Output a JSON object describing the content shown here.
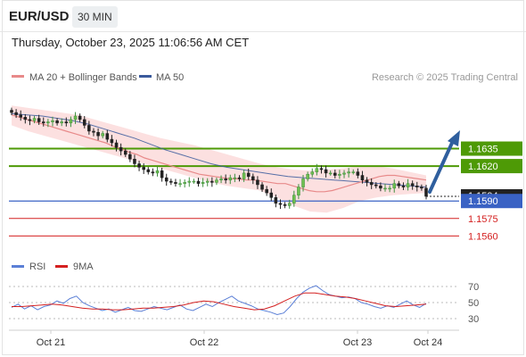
{
  "header": {
    "symbol": "EUR/USD",
    "timeframe": "30 MIN",
    "timestamp": "Thursday, October 23, 2025 11:06:56 AM CET",
    "credit": "Research © 2025 Trading Central"
  },
  "legend": {
    "ma20_label": "MA 20 + Bollinger Bands",
    "ma50_label": "MA 50",
    "rsi_label": "RSI",
    "rsi_ma_label": "9MA"
  },
  "colors": {
    "green": "#4e9a06",
    "blue": "#3a62c4",
    "red": "#d42020",
    "ma20": "#e88a8a",
    "ma50": "#3a5a9c",
    "band": "#fbd5d5",
    "arrow": "#2f5f9e",
    "rsi": "#5b7fd6",
    "rsi_ma": "#d42020"
  },
  "chart_data": [
    {
      "type": "candlestick",
      "title": "EUR/USD",
      "x_ticks": [
        "Oct 21",
        "Oct 22",
        "Oct 23",
        "Oct 24"
      ],
      "ylim": [
        1.1548,
        1.1686
      ],
      "levels": [
        {
          "label": "1.1635",
          "value": 1.1635,
          "kind": "resistance",
          "color": "#4e9a06"
        },
        {
          "label": "1.1620",
          "value": 1.162,
          "kind": "resistance",
          "color": "#4e9a06"
        },
        {
          "label": "1.1594",
          "value": 1.1594,
          "kind": "last-price",
          "color": "#222222"
        },
        {
          "label": "1.1590",
          "value": 1.159,
          "kind": "pivot",
          "color": "#3a62c4"
        },
        {
          "label": "1.1575",
          "value": 1.1575,
          "kind": "support",
          "color": "#d42020"
        },
        {
          "label": "1.1560",
          "value": 1.156,
          "kind": "support",
          "color": "#d42020"
        }
      ],
      "close": [
        1.1666,
        1.1664,
        1.1662,
        1.166,
        1.1659,
        1.1661,
        1.1658,
        1.1657,
        1.1658,
        1.1659,
        1.1657,
        1.1658,
        1.1657,
        1.166,
        1.1663,
        1.166,
        1.1655,
        1.165,
        1.1649,
        1.1646,
        1.1648,
        1.1643,
        1.164,
        1.1636,
        1.1633,
        1.163,
        1.1626,
        1.1622,
        1.1619,
        1.1617,
        1.1615,
        1.1614,
        1.1616,
        1.161,
        1.1607,
        1.1606,
        1.1605,
        1.1605,
        1.1606,
        1.1607,
        1.1607,
        1.1605,
        1.1606,
        1.1607,
        1.1606,
        1.1608,
        1.1609,
        1.1608,
        1.161,
        1.161,
        1.1609,
        1.1614,
        1.1611,
        1.1608,
        1.1604,
        1.16,
        1.1597,
        1.1593,
        1.1588,
        1.1587,
        1.1586,
        1.1588,
        1.1595,
        1.1602,
        1.1609,
        1.1613,
        1.1615,
        1.1618,
        1.1617,
        1.1614,
        1.1614,
        1.1612,
        1.1613,
        1.1614,
        1.1615,
        1.1615,
        1.1612,
        1.1608,
        1.1606,
        1.1604,
        1.1603,
        1.1601,
        1.1601,
        1.1601,
        1.1605,
        1.1603,
        1.1602,
        1.1605,
        1.1603,
        1.1602,
        1.1601,
        1.1594
      ],
      "ma20": [
        1.1664,
        1.1662,
        1.166,
        1.1658,
        1.1656,
        1.1654,
        1.1652,
        1.165,
        1.1648,
        1.1646,
        1.1644,
        1.1642,
        1.164,
        1.1637,
        1.1635,
        1.1632,
        1.163,
        1.1627,
        1.1625,
        1.1623,
        1.1621,
        1.1619,
        1.1617,
        1.1615,
        1.1613,
        1.1612,
        1.1611,
        1.161,
        1.1609,
        1.1609,
        1.1608,
        1.1608,
        1.1607,
        1.1606,
        1.1605,
        1.1605,
        1.1603,
        1.1601,
        1.1599,
        1.1598,
        1.1598,
        1.1599,
        1.1601,
        1.1603,
        1.1605,
        1.1607,
        1.1609,
        1.1611,
        1.1612,
        1.1612,
        1.1611,
        1.161,
        1.1609,
        1.1608
      ],
      "ma50": [
        1.1665,
        1.1664,
        1.1663,
        1.1661,
        1.1659,
        1.1656,
        1.1652,
        1.1648,
        1.1644,
        1.1639,
        1.1634,
        1.163,
        1.1626,
        1.1622,
        1.1619,
        1.1617,
        1.1615,
        1.1613,
        1.1611,
        1.161,
        1.1609,
        1.1608,
        1.1607,
        1.1606,
        1.1605,
        1.1604,
        1.1603,
        1.1602
      ],
      "bb_upper": [
        1.1672,
        1.167,
        1.1668,
        1.1666,
        1.1664,
        1.166,
        1.1656,
        1.1652,
        1.1648,
        1.1644,
        1.1641,
        1.1638,
        1.1634,
        1.163,
        1.1626,
        1.1622,
        1.1619,
        1.1617,
        1.1616,
        1.1617,
        1.1618,
        1.162,
        1.162,
        1.1618,
        1.1615,
        1.1612
      ],
      "bb_lower": [
        1.1655,
        1.165,
        1.1646,
        1.1642,
        1.1638,
        1.1634,
        1.163,
        1.1626,
        1.1622,
        1.1618,
        1.1614,
        1.161,
        1.1606,
        1.1603,
        1.1601,
        1.1599,
        1.1593,
        1.1586,
        1.1581,
        1.158,
        1.1584,
        1.159,
        1.1593,
        1.1595,
        1.1596,
        1.1597
      ]
    },
    {
      "type": "line",
      "title": "RSI",
      "y_ticks": [
        70,
        50,
        30
      ],
      "ylim": [
        20,
        80
      ],
      "series": [
        {
          "name": "RSI",
          "values": [
            44,
            48,
            42,
            46,
            41,
            45,
            47,
            52,
            49,
            55,
            58,
            50,
            46,
            43,
            40,
            42,
            38,
            41,
            44,
            40,
            39,
            42,
            45,
            43,
            41,
            44,
            47,
            42,
            40,
            44,
            48,
            45,
            50,
            54,
            58,
            52,
            49,
            46,
            42,
            40,
            38,
            35,
            37,
            45,
            55,
            63,
            68,
            71,
            65,
            60,
            58,
            56,
            57,
            55,
            50,
            48,
            45,
            43,
            46,
            44,
            48,
            52,
            47,
            44,
            49
          ]
        },
        {
          "name": "9MA",
          "values": [
            45,
            45,
            46,
            47,
            48,
            47,
            45,
            43,
            42,
            42,
            41,
            41,
            42,
            43,
            43,
            44,
            45,
            47,
            50,
            52,
            51,
            48,
            45,
            43,
            41,
            42,
            46,
            52,
            58,
            62,
            62,
            60,
            58,
            57,
            55,
            52,
            49,
            46,
            45,
            46,
            47,
            48
          ]
        }
      ]
    }
  ]
}
